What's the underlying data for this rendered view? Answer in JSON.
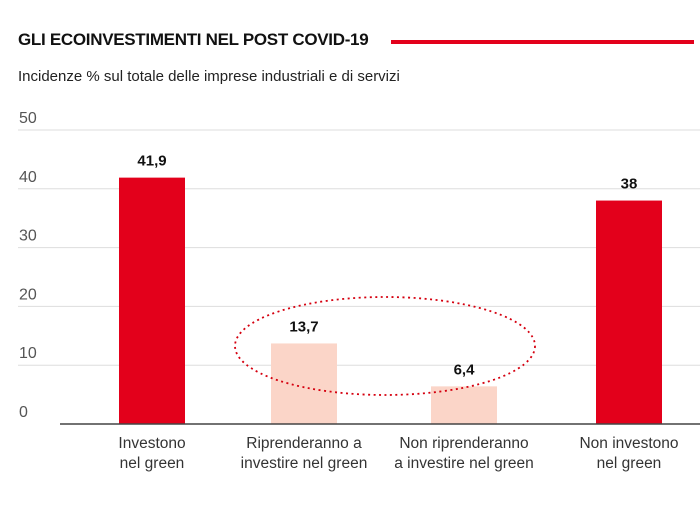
{
  "header": {
    "title": "GLI ECOINVESTIMENTI NEL POST COVID-19",
    "subtitle": "Incidenze % sul totale delle imprese industriali e di servizi"
  },
  "colors": {
    "accent": "#e3001b",
    "highlight_bar": "#fbd5c8",
    "grid": "#dddddd",
    "axis": "#444444",
    "ellipse": "#d5000f"
  },
  "chart_data": {
    "type": "bar",
    "title": "GLI ECOINVESTIMENTI NEL POST COVID-19",
    "subtitle": "Incidenze % sul totale delle imprese industriali e di servizi",
    "xlabel": "",
    "ylabel": "",
    "ylim": [
      0,
      50
    ],
    "yticks": [
      "0",
      "10",
      "20",
      "30",
      "40",
      "50"
    ],
    "grid": true,
    "categories": [
      [
        "Investono",
        "nel green"
      ],
      [
        "Riprenderanno a",
        "investire nel green"
      ],
      [
        "Non riprenderanno",
        "a investire nel green"
      ],
      [
        "Non investono",
        "nel green"
      ]
    ],
    "values": [
      41.9,
      13.7,
      6.4,
      38
    ],
    "value_labels": [
      "41,9",
      "13,7",
      "6,4",
      "38"
    ],
    "bar_colors": [
      "#e3001b",
      "#fbd5c8",
      "#fbd5c8",
      "#e3001b"
    ],
    "annotations": [
      "dotted ellipse around the two middle bars"
    ]
  }
}
